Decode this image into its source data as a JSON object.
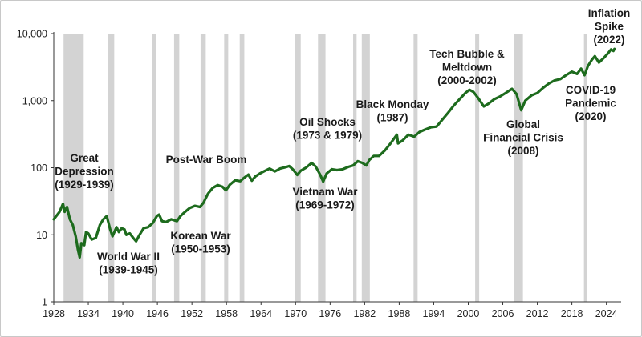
{
  "chart_data": {
    "type": "line",
    "y_scale": "log",
    "ylim": [
      1,
      10000
    ],
    "xlim": [
      1928,
      2026
    ],
    "grid": false,
    "y_ticks": [
      "1",
      "10",
      "100",
      "1,000",
      "10,000"
    ],
    "y_tick_values": [
      1,
      10,
      100,
      1000,
      10000
    ],
    "x_ticks": [
      "1928",
      "1934",
      "1940",
      "1946",
      "1952",
      "1958",
      "1964",
      "1970",
      "1976",
      "1982",
      "1988",
      "1994",
      "2000",
      "2006",
      "2012",
      "2018",
      "2024"
    ],
    "x_tick_values": [
      1928,
      1934,
      1940,
      1946,
      1952,
      1958,
      1964,
      1970,
      1976,
      1982,
      1988,
      1994,
      2000,
      2006,
      2012,
      2018,
      2024
    ],
    "line_color": "#1d6b1d",
    "shade_color": "#d3d3d3",
    "recessions": [
      [
        1929.7,
        1933.2
      ],
      [
        1937.4,
        1938.5
      ],
      [
        1945.1,
        1945.8
      ],
      [
        1948.9,
        1949.8
      ],
      [
        1953.5,
        1954.4
      ],
      [
        1957.6,
        1958.3
      ],
      [
        1960.3,
        1961.1
      ],
      [
        1969.9,
        1970.9
      ],
      [
        1973.9,
        1975.2
      ],
      [
        1980.0,
        1980.6
      ],
      [
        1981.5,
        1982.9
      ],
      [
        1990.5,
        1991.2
      ],
      [
        2001.2,
        2001.9
      ],
      [
        2007.9,
        2009.5
      ],
      [
        2020.1,
        2020.4
      ]
    ],
    "values": [
      [
        1928,
        17
      ],
      [
        1929.0,
        22
      ],
      [
        1929.6,
        29
      ],
      [
        1929.9,
        22
      ],
      [
        1930.3,
        26
      ],
      [
        1930.8,
        17
      ],
      [
        1931.3,
        14
      ],
      [
        1931.8,
        9.5
      ],
      [
        1932.2,
        6
      ],
      [
        1932.5,
        4.6
      ],
      [
        1932.8,
        7.5
      ],
      [
        1933.3,
        7
      ],
      [
        1933.6,
        11
      ],
      [
        1934.0,
        10.5
      ],
      [
        1934.6,
        8.5
      ],
      [
        1935.3,
        9
      ],
      [
        1936.0,
        14
      ],
      [
        1936.6,
        17
      ],
      [
        1937.2,
        19
      ],
      [
        1937.8,
        12
      ],
      [
        1938.2,
        9.5
      ],
      [
        1938.9,
        13
      ],
      [
        1939.3,
        11
      ],
      [
        1939.8,
        12.5
      ],
      [
        1940.3,
        12
      ],
      [
        1940.6,
        10
      ],
      [
        1941.2,
        10.5
      ],
      [
        1941.8,
        9
      ],
      [
        1942.3,
        8
      ],
      [
        1942.9,
        10
      ],
      [
        1943.6,
        12.5
      ],
      [
        1944.4,
        13
      ],
      [
        1945.2,
        15
      ],
      [
        1945.9,
        19
      ],
      [
        1946.3,
        20
      ],
      [
        1946.8,
        16
      ],
      [
        1947.5,
        15.5
      ],
      [
        1948.4,
        17
      ],
      [
        1949.4,
        16
      ],
      [
        1950.0,
        19
      ],
      [
        1950.8,
        22
      ],
      [
        1951.6,
        25
      ],
      [
        1952.5,
        27
      ],
      [
        1953.4,
        26
      ],
      [
        1954.0,
        30
      ],
      [
        1954.8,
        41
      ],
      [
        1955.6,
        50
      ],
      [
        1956.5,
        55
      ],
      [
        1957.3,
        52
      ],
      [
        1957.9,
        46
      ],
      [
        1958.6,
        56
      ],
      [
        1959.5,
        65
      ],
      [
        1960.4,
        63
      ],
      [
        1961.0,
        70
      ],
      [
        1961.8,
        79
      ],
      [
        1962.4,
        64
      ],
      [
        1963.0,
        74
      ],
      [
        1963.8,
        82
      ],
      [
        1964.7,
        90
      ],
      [
        1965.5,
        97
      ],
      [
        1966.4,
        88
      ],
      [
        1967.3,
        97
      ],
      [
        1968.3,
        102
      ],
      [
        1968.9,
        106
      ],
      [
        1969.6,
        93
      ],
      [
        1970.3,
        78
      ],
      [
        1970.9,
        90
      ],
      [
        1971.8,
        100
      ],
      [
        1972.8,
        118
      ],
      [
        1973.5,
        104
      ],
      [
        1974.3,
        78
      ],
      [
        1974.8,
        62
      ],
      [
        1975.4,
        82
      ],
      [
        1976.3,
        95
      ],
      [
        1977.2,
        92
      ],
      [
        1978.2,
        95
      ],
      [
        1979.2,
        103
      ],
      [
        1980.0,
        108
      ],
      [
        1980.8,
        125
      ],
      [
        1981.6,
        118
      ],
      [
        1982.3,
        108
      ],
      [
        1982.8,
        130
      ],
      [
        1983.6,
        150
      ],
      [
        1984.5,
        150
      ],
      [
        1985.5,
        180
      ],
      [
        1986.5,
        230
      ],
      [
        1987.6,
        310
      ],
      [
        1987.8,
        230
      ],
      [
        1988.6,
        255
      ],
      [
        1989.6,
        310
      ],
      [
        1990.6,
        290
      ],
      [
        1991.5,
        340
      ],
      [
        1992.5,
        370
      ],
      [
        1993.5,
        400
      ],
      [
        1994.5,
        410
      ],
      [
        1995.5,
        520
      ],
      [
        1996.5,
        660
      ],
      [
        1997.5,
        850
      ],
      [
        1998.5,
        1050
      ],
      [
        1999.5,
        1300
      ],
      [
        2000.2,
        1450
      ],
      [
        2000.9,
        1350
      ],
      [
        2001.7,
        1100
      ],
      [
        2002.7,
        820
      ],
      [
        2003.5,
        900
      ],
      [
        2004.5,
        1050
      ],
      [
        2005.5,
        1150
      ],
      [
        2006.5,
        1300
      ],
      [
        2007.6,
        1500
      ],
      [
        2008.4,
        1250
      ],
      [
        2009.2,
        720
      ],
      [
        2009.9,
        1000
      ],
      [
        2011.0,
        1200
      ],
      [
        2012.0,
        1300
      ],
      [
        2013.0,
        1550
      ],
      [
        2014.0,
        1800
      ],
      [
        2015.0,
        2000
      ],
      [
        2016.0,
        2100
      ],
      [
        2017.0,
        2400
      ],
      [
        2018.0,
        2700
      ],
      [
        2018.9,
        2500
      ],
      [
        2019.6,
        3000
      ],
      [
        2020.2,
        2400
      ],
      [
        2020.8,
        3300
      ],
      [
        2021.5,
        4100
      ],
      [
        2022.0,
        4600
      ],
      [
        2022.7,
        3700
      ],
      [
        2023.5,
        4300
      ],
      [
        2024.3,
        5100
      ],
      [
        2024.8,
        5800
      ],
      [
        2025.2,
        5500
      ],
      [
        2025.4,
        5900
      ]
    ],
    "annotations": [
      {
        "lines": [
          "Great",
          "Depression",
          "(1929-1939)"
        ]
      },
      {
        "lines": [
          "World War II",
          "(1939-1945)"
        ]
      },
      {
        "lines": [
          "Post-War Boom"
        ]
      },
      {
        "lines": [
          "Korean War",
          "(1950-1953)"
        ]
      },
      {
        "lines": [
          "Vietnam War",
          "(1969-1972)"
        ]
      },
      {
        "lines": [
          "Oil Shocks",
          "(1973 & 1979)"
        ]
      },
      {
        "lines": [
          "Black Monday",
          "(1987)"
        ]
      },
      {
        "lines": [
          "Tech Bubble &",
          "Meltdown",
          "(2000-2002)"
        ]
      },
      {
        "lines": [
          "Global",
          "Financial Crisis",
          "(2008)"
        ]
      },
      {
        "lines": [
          "COVID-19",
          "Pandemic",
          "(2020)"
        ]
      },
      {
        "lines": [
          "Inflation",
          "Spike",
          "(2022)"
        ]
      }
    ]
  }
}
